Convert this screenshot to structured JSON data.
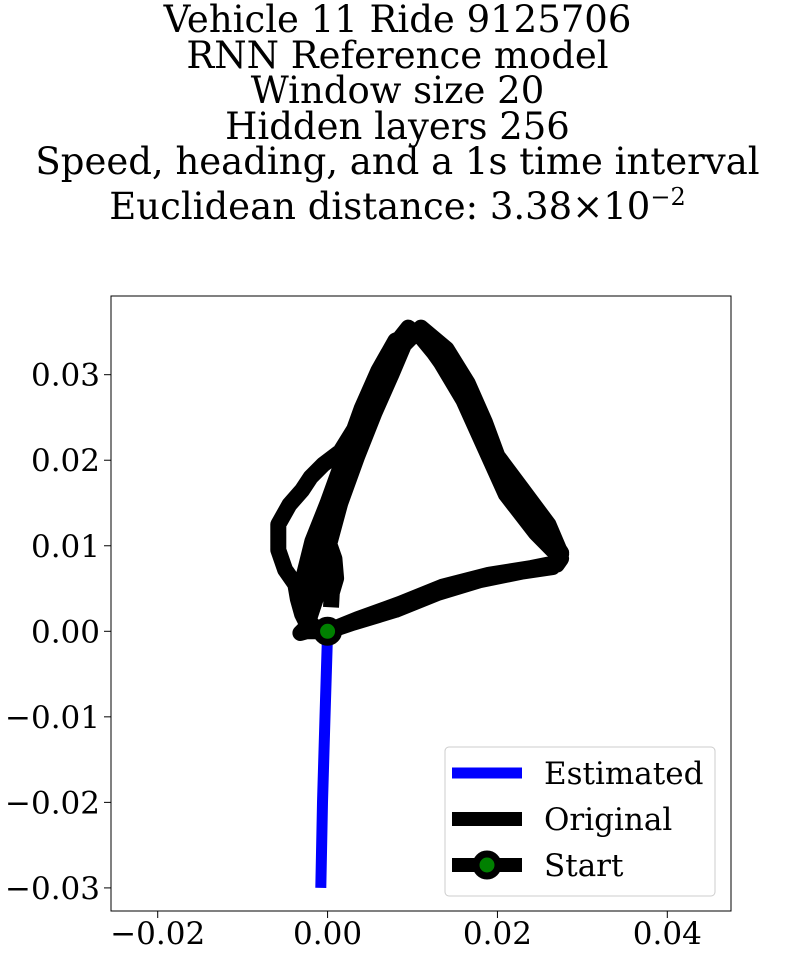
{
  "chart_data": {
    "type": "line",
    "title_lines": [
      "Vehicle 11 Ride 9125706",
      "RNN Reference model",
      "Window size 20",
      "Hidden layers 256",
      "Speed, heading, and a 1s time interval"
    ],
    "title_metric": {
      "label": "Euclidean distance: ",
      "mantissa": "3.38",
      "times": "×",
      "base": "10",
      "exponent": "−2"
    },
    "xlabel": "",
    "ylabel": "",
    "xlim": [
      -0.0255,
      0.0475
    ],
    "ylim": [
      -0.0327,
      0.0392
    ],
    "xticks": [
      -0.02,
      0.0,
      0.02,
      0.04
    ],
    "xtick_labels": [
      "−0.02",
      "0.00",
      "0.02",
      "0.04"
    ],
    "yticks": [
      -0.03,
      -0.02,
      -0.01,
      0.0,
      0.01,
      0.02,
      0.03
    ],
    "ytick_labels": [
      "−0.03",
      "−0.02",
      "−0.01",
      "0.00",
      "0.01",
      "0.02",
      "0.03"
    ],
    "grid": false,
    "legend_position": "lower right",
    "series": [
      {
        "name": "Estimated",
        "color": "#0000ff",
        "x": [
          0.0,
          -0.0003,
          -0.0006,
          -0.0008
        ],
        "y": [
          0.0,
          -0.01,
          -0.02,
          -0.03
        ]
      },
      {
        "name": "Original",
        "color": "#000000",
        "x": [
          0.0,
          0.003,
          0.008,
          0.013,
          0.018,
          0.023,
          0.0265,
          0.0275,
          0.026,
          0.023,
          0.02,
          0.0185,
          0.0165,
          0.014,
          0.011,
          0.009,
          0.0075,
          0.0055,
          0.0035,
          0.0015,
          0.0,
          -0.001,
          -0.002,
          -0.0025,
          -0.003,
          -0.0032,
          -0.0025,
          -0.001,
          0.0,
          0.003,
          0.008,
          0.013,
          0.018,
          0.023,
          0.027,
          0.0275,
          0.0245,
          0.021,
          0.0185,
          0.016,
          0.013,
          0.0105,
          0.008,
          0.006,
          0.004,
          0.002,
          0.0,
          -0.0018,
          -0.0028,
          -0.0033,
          -0.0025,
          -0.001,
          0.0,
          0.0035,
          0.0085,
          0.0135,
          0.019,
          0.024,
          0.027,
          0.0275,
          0.025,
          0.022,
          0.019,
          0.017,
          0.014,
          0.0115,
          0.0095,
          0.0075,
          0.006,
          0.004,
          0.0015,
          -0.0005,
          -0.002,
          -0.003,
          -0.0045,
          -0.0058,
          -0.0058,
          -0.005,
          -0.0038,
          -0.0035,
          -0.003,
          -0.0025,
          -0.0015,
          0.0,
          0.0,
          -0.0015,
          -0.0025,
          -0.0028,
          -0.0022,
          -0.0012,
          0.0001,
          0.0008,
          0.001,
          0.0005,
          0.0004
        ],
        "y": [
          0.0,
          0.001,
          0.0025,
          0.0045,
          0.006,
          0.007,
          0.0075,
          0.009,
          0.0125,
          0.0165,
          0.0205,
          0.0245,
          0.029,
          0.033,
          0.0355,
          0.0335,
          0.03,
          0.0255,
          0.0205,
          0.015,
          0.0095,
          0.005,
          0.002,
          0.0005,
          0.0,
          -0.0002,
          0.0,
          0.0,
          0.0,
          0.0012,
          0.0028,
          0.0048,
          0.0062,
          0.0072,
          0.0078,
          0.0085,
          0.0115,
          0.016,
          0.0215,
          0.027,
          0.032,
          0.035,
          0.034,
          0.0305,
          0.026,
          0.0205,
          0.015,
          0.0105,
          0.0065,
          0.0035,
          0.001,
          -0.0001,
          0.0,
          0.0014,
          0.0032,
          0.0052,
          0.0066,
          0.0074,
          0.008,
          0.0092,
          0.013,
          0.017,
          0.0205,
          0.0255,
          0.0305,
          0.034,
          0.0355,
          0.033,
          0.0295,
          0.025,
          0.021,
          0.0195,
          0.018,
          0.0165,
          0.0148,
          0.0125,
          0.0095,
          0.0072,
          0.0055,
          0.0038,
          0.002,
          0.001,
          0.0003,
          0.0,
          0.0,
          0.0005,
          0.0015,
          0.0032,
          0.0055,
          0.0075,
          0.0105,
          0.0085,
          0.0062,
          0.0045,
          0.0028
        ]
      },
      {
        "name": "Start",
        "color": "#000000",
        "marker_face": "#008000",
        "x": [
          0.0
        ],
        "y": [
          0.0
        ]
      }
    ]
  }
}
